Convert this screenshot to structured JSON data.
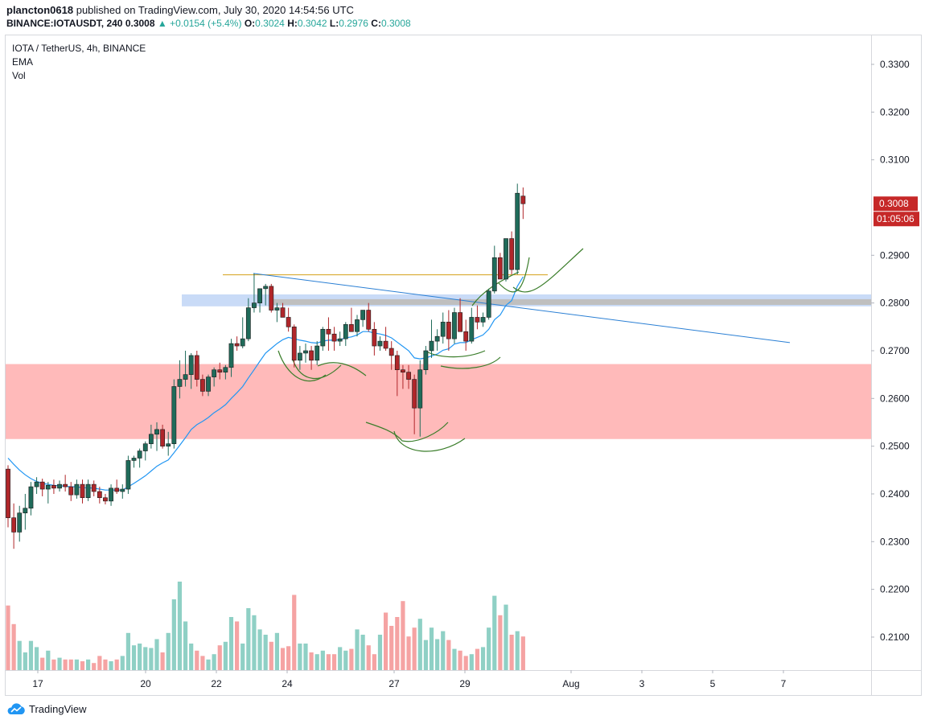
{
  "header": {
    "publisher": "plancton0618",
    "published_text": "published on TradingView.com, July 30, 2020 14:54:56 UTC",
    "symbol": "BINANCE:IOTAUSDT, 240",
    "last": "0.3008",
    "change": "▲ +0.0154 (+5.4%)",
    "o_label": "O:",
    "o": "0.3024",
    "h_label": "H:",
    "h": "0.3042",
    "l_label": "L:",
    "l": "0.2976",
    "c_label": "C:",
    "c": "0.3008"
  },
  "legend": {
    "title": "IOTA / TetherUS, 4h, BINANCE",
    "ema": "EMA",
    "vol": "Vol"
  },
  "footer": {
    "brand": "TradingView"
  },
  "colors": {
    "up": "#26a69a",
    "down": "#ef5350",
    "candle_up": "#1f6b5a",
    "candle_down": "#b0262a",
    "ema": "#2196f3",
    "volume_up": "#8fd0c5",
    "volume_down": "#f5a3a3",
    "support_zone": "#ffbaba",
    "resistance_zone_blue": "#c9dbf7",
    "resistance_zone_grey": "#bfbfbf",
    "horizontal_line": "#d4a017",
    "trend_line": "#2a7fd4",
    "arcs": "#3a7d2a",
    "price_label": "#c62828"
  },
  "chart_data": {
    "type": "candlestick",
    "title": "IOTA / TetherUS, 4h, BINANCE",
    "price_range": [
      0.2025,
      0.3395
    ],
    "y_ticks": [
      "0.3300",
      "0.3200",
      "0.3100",
      "0.2900",
      "0.2800",
      "0.2700",
      "0.2600",
      "0.2500",
      "0.2400",
      "0.2300",
      "0.2200",
      "0.2100"
    ],
    "x_ticks": [
      "17",
      "20",
      "22",
      "24",
      "27",
      "29",
      "Aug",
      "3",
      "5",
      "7"
    ],
    "last_price_label": "0.3008",
    "countdown_label": "01:05:06",
    "candles": [
      {
        "o": 0.2452,
        "h": 0.246,
        "l": 0.233,
        "c": 0.235
      },
      {
        "o": 0.235,
        "h": 0.238,
        "l": 0.2285,
        "c": 0.232
      },
      {
        "o": 0.232,
        "h": 0.2375,
        "l": 0.23,
        "c": 0.236
      },
      {
        "o": 0.236,
        "h": 0.24,
        "l": 0.2325,
        "c": 0.237
      },
      {
        "o": 0.237,
        "h": 0.2425,
        "l": 0.2355,
        "c": 0.2415
      },
      {
        "o": 0.2415,
        "h": 0.2435,
        "l": 0.24,
        "c": 0.2425
      },
      {
        "o": 0.2425,
        "h": 0.2432,
        "l": 0.2395,
        "c": 0.241
      },
      {
        "o": 0.241,
        "h": 0.2425,
        "l": 0.238,
        "c": 0.2418
      },
      {
        "o": 0.2418,
        "h": 0.243,
        "l": 0.24,
        "c": 0.2412
      },
      {
        "o": 0.2412,
        "h": 0.2428,
        "l": 0.2405,
        "c": 0.242
      },
      {
        "o": 0.242,
        "h": 0.244,
        "l": 0.2405,
        "c": 0.2415
      },
      {
        "o": 0.2415,
        "h": 0.2425,
        "l": 0.2385,
        "c": 0.2398
      },
      {
        "o": 0.2398,
        "h": 0.243,
        "l": 0.239,
        "c": 0.242
      },
      {
        "o": 0.242,
        "h": 0.243,
        "l": 0.238,
        "c": 0.2392
      },
      {
        "o": 0.2392,
        "h": 0.243,
        "l": 0.2385,
        "c": 0.242
      },
      {
        "o": 0.242,
        "h": 0.2428,
        "l": 0.2395,
        "c": 0.2405
      },
      {
        "o": 0.2405,
        "h": 0.2415,
        "l": 0.238,
        "c": 0.2392
      },
      {
        "o": 0.2392,
        "h": 0.24,
        "l": 0.2378,
        "c": 0.2385
      },
      {
        "o": 0.2385,
        "h": 0.242,
        "l": 0.2375,
        "c": 0.2412
      },
      {
        "o": 0.2412,
        "h": 0.243,
        "l": 0.24,
        "c": 0.2405
      },
      {
        "o": 0.2405,
        "h": 0.242,
        "l": 0.239,
        "c": 0.241
      },
      {
        "o": 0.241,
        "h": 0.248,
        "l": 0.24,
        "c": 0.247
      },
      {
        "o": 0.247,
        "h": 0.248,
        "l": 0.2455,
        "c": 0.2475
      },
      {
        "o": 0.2475,
        "h": 0.2495,
        "l": 0.2455,
        "c": 0.249
      },
      {
        "o": 0.249,
        "h": 0.251,
        "l": 0.247,
        "c": 0.2505
      },
      {
        "o": 0.2505,
        "h": 0.2545,
        "l": 0.2495,
        "c": 0.2525
      },
      {
        "o": 0.2525,
        "h": 0.255,
        "l": 0.249,
        "c": 0.2535
      },
      {
        "o": 0.2535,
        "h": 0.2545,
        "l": 0.2495,
        "c": 0.25
      },
      {
        "o": 0.25,
        "h": 0.253,
        "l": 0.248,
        "c": 0.2505
      },
      {
        "o": 0.2505,
        "h": 0.264,
        "l": 0.2495,
        "c": 0.2625
      },
      {
        "o": 0.2625,
        "h": 0.268,
        "l": 0.26,
        "c": 0.264
      },
      {
        "o": 0.264,
        "h": 0.27,
        "l": 0.2625,
        "c": 0.265
      },
      {
        "o": 0.265,
        "h": 0.2695,
        "l": 0.262,
        "c": 0.269
      },
      {
        "o": 0.269,
        "h": 0.27,
        "l": 0.2625,
        "c": 0.264
      },
      {
        "o": 0.264,
        "h": 0.265,
        "l": 0.2605,
        "c": 0.2615
      },
      {
        "o": 0.2615,
        "h": 0.265,
        "l": 0.2605,
        "c": 0.2645
      },
      {
        "o": 0.2645,
        "h": 0.2665,
        "l": 0.2625,
        "c": 0.266
      },
      {
        "o": 0.266,
        "h": 0.2675,
        "l": 0.264,
        "c": 0.2655
      },
      {
        "o": 0.2655,
        "h": 0.267,
        "l": 0.264,
        "c": 0.2665
      },
      {
        "o": 0.2665,
        "h": 0.2725,
        "l": 0.2645,
        "c": 0.2715
      },
      {
        "o": 0.2715,
        "h": 0.273,
        "l": 0.27,
        "c": 0.271
      },
      {
        "o": 0.271,
        "h": 0.277,
        "l": 0.2705,
        "c": 0.2725
      },
      {
        "o": 0.2725,
        "h": 0.281,
        "l": 0.272,
        "c": 0.279
      },
      {
        "o": 0.279,
        "h": 0.2862,
        "l": 0.278,
        "c": 0.28
      },
      {
        "o": 0.28,
        "h": 0.283,
        "l": 0.278,
        "c": 0.283
      },
      {
        "o": 0.283,
        "h": 0.284,
        "l": 0.2795,
        "c": 0.2835
      },
      {
        "o": 0.2835,
        "h": 0.284,
        "l": 0.278,
        "c": 0.2785
      },
      {
        "o": 0.2785,
        "h": 0.28,
        "l": 0.276,
        "c": 0.279
      },
      {
        "o": 0.279,
        "h": 0.28,
        "l": 0.277,
        "c": 0.277
      },
      {
        "o": 0.277,
        "h": 0.279,
        "l": 0.274,
        "c": 0.275
      },
      {
        "o": 0.275,
        "h": 0.2755,
        "l": 0.2665,
        "c": 0.268
      },
      {
        "o": 0.268,
        "h": 0.271,
        "l": 0.266,
        "c": 0.2695
      },
      {
        "o": 0.2695,
        "h": 0.2715,
        "l": 0.2675,
        "c": 0.27
      },
      {
        "o": 0.27,
        "h": 0.271,
        "l": 0.266,
        "c": 0.268
      },
      {
        "o": 0.268,
        "h": 0.272,
        "l": 0.267,
        "c": 0.271
      },
      {
        "o": 0.271,
        "h": 0.275,
        "l": 0.27,
        "c": 0.2745
      },
      {
        "o": 0.2745,
        "h": 0.277,
        "l": 0.27,
        "c": 0.2735
      },
      {
        "o": 0.2735,
        "h": 0.275,
        "l": 0.27,
        "c": 0.272
      },
      {
        "o": 0.272,
        "h": 0.274,
        "l": 0.271,
        "c": 0.2725
      },
      {
        "o": 0.2725,
        "h": 0.276,
        "l": 0.271,
        "c": 0.2755
      },
      {
        "o": 0.2755,
        "h": 0.279,
        "l": 0.274,
        "c": 0.274
      },
      {
        "o": 0.274,
        "h": 0.2775,
        "l": 0.273,
        "c": 0.2765
      },
      {
        "o": 0.2765,
        "h": 0.2785,
        "l": 0.275,
        "c": 0.2785
      },
      {
        "o": 0.2785,
        "h": 0.28,
        "l": 0.274,
        "c": 0.2745
      },
      {
        "o": 0.2745,
        "h": 0.276,
        "l": 0.269,
        "c": 0.271
      },
      {
        "o": 0.271,
        "h": 0.273,
        "l": 0.27,
        "c": 0.272
      },
      {
        "o": 0.272,
        "h": 0.275,
        "l": 0.27,
        "c": 0.2705
      },
      {
        "o": 0.2705,
        "h": 0.272,
        "l": 0.266,
        "c": 0.269
      },
      {
        "o": 0.269,
        "h": 0.27,
        "l": 0.2605,
        "c": 0.266
      },
      {
        "o": 0.266,
        "h": 0.267,
        "l": 0.262,
        "c": 0.2655
      },
      {
        "o": 0.2655,
        "h": 0.267,
        "l": 0.262,
        "c": 0.264
      },
      {
        "o": 0.264,
        "h": 0.265,
        "l": 0.2525,
        "c": 0.258
      },
      {
        "o": 0.258,
        "h": 0.268,
        "l": 0.252,
        "c": 0.266
      },
      {
        "o": 0.266,
        "h": 0.271,
        "l": 0.265,
        "c": 0.27
      },
      {
        "o": 0.27,
        "h": 0.2765,
        "l": 0.2685,
        "c": 0.272
      },
      {
        "o": 0.272,
        "h": 0.2745,
        "l": 0.27,
        "c": 0.273
      },
      {
        "o": 0.273,
        "h": 0.278,
        "l": 0.2715,
        "c": 0.276
      },
      {
        "o": 0.276,
        "h": 0.2785,
        "l": 0.27,
        "c": 0.2725
      },
      {
        "o": 0.2725,
        "h": 0.279,
        "l": 0.2715,
        "c": 0.278
      },
      {
        "o": 0.278,
        "h": 0.281,
        "l": 0.274,
        "c": 0.274
      },
      {
        "o": 0.274,
        "h": 0.2765,
        "l": 0.27,
        "c": 0.272
      },
      {
        "o": 0.272,
        "h": 0.279,
        "l": 0.2715,
        "c": 0.277
      },
      {
        "o": 0.277,
        "h": 0.2795,
        "l": 0.2745,
        "c": 0.276
      },
      {
        "o": 0.276,
        "h": 0.278,
        "l": 0.275,
        "c": 0.277
      },
      {
        "o": 0.277,
        "h": 0.283,
        "l": 0.2765,
        "c": 0.2825
      },
      {
        "o": 0.2825,
        "h": 0.292,
        "l": 0.282,
        "c": 0.2895
      },
      {
        "o": 0.2895,
        "h": 0.2905,
        "l": 0.285,
        "c": 0.285
      },
      {
        "o": 0.285,
        "h": 0.2935,
        "l": 0.2845,
        "c": 0.2935
      },
      {
        "o": 0.2935,
        "h": 0.295,
        "l": 0.286,
        "c": 0.287
      },
      {
        "o": 0.287,
        "h": 0.305,
        "l": 0.286,
        "c": 0.303
      },
      {
        "o": 0.3024,
        "h": 0.3042,
        "l": 0.2976,
        "c": 0.3008
      }
    ],
    "ema": [
      0.2475,
      0.2462,
      0.245,
      0.244,
      0.2432,
      0.2426,
      0.2422,
      0.242,
      0.2418,
      0.2417,
      0.2416,
      0.2415,
      0.2415,
      0.2413,
      0.2413,
      0.2412,
      0.241,
      0.2408,
      0.2408,
      0.2408,
      0.2408,
      0.2415,
      0.2422,
      0.243,
      0.2438,
      0.2448,
      0.2458,
      0.2465,
      0.2471,
      0.2486,
      0.2502,
      0.2518,
      0.2535,
      0.2545,
      0.2552,
      0.256,
      0.257,
      0.2578,
      0.2587,
      0.26,
      0.2612,
      0.2625,
      0.2643,
      0.266,
      0.2678,
      0.2695,
      0.2705,
      0.2715,
      0.2723,
      0.2728,
      0.2725,
      0.2722,
      0.272,
      0.2717,
      0.2716,
      0.272,
      0.2722,
      0.2722,
      0.2723,
      0.2727,
      0.2729,
      0.2733,
      0.274,
      0.274,
      0.2737,
      0.2735,
      0.2732,
      0.2727,
      0.2718,
      0.2709,
      0.27,
      0.2685,
      0.2683,
      0.2685,
      0.2689,
      0.2693,
      0.2701,
      0.2704,
      0.2714,
      0.2717,
      0.2717,
      0.2723,
      0.2728,
      0.2733,
      0.2745,
      0.2765,
      0.2775,
      0.2795,
      0.2805,
      0.2835,
      0.2855
    ],
    "volume": [
      0.73,
      0.52,
      0.33,
      0.2,
      0.33,
      0.26,
      0.14,
      0.22,
      0.12,
      0.14,
      0.12,
      0.12,
      0.12,
      0.1,
      0.12,
      0.08,
      0.16,
      0.12,
      0.1,
      0.12,
      0.16,
      0.42,
      0.28,
      0.3,
      0.26,
      0.25,
      0.35,
      0.2,
      0.42,
      0.8,
      1.0,
      0.55,
      0.3,
      0.22,
      0.16,
      0.12,
      0.18,
      0.28,
      0.32,
      0.6,
      0.55,
      0.3,
      0.7,
      0.62,
      0.46,
      0.4,
      0.32,
      0.42,
      0.25,
      0.27,
      0.85,
      0.3,
      0.3,
      0.2,
      0.18,
      0.22,
      0.18,
      0.18,
      0.26,
      0.22,
      0.24,
      0.46,
      0.4,
      0.28,
      0.18,
      0.4,
      0.65,
      0.5,
      0.6,
      0.78,
      0.38,
      0.48,
      0.58,
      0.34,
      0.48,
      0.35,
      0.44,
      0.34,
      0.24,
      0.22,
      0.16,
      0.18,
      0.24,
      0.26,
      0.48,
      0.84,
      0.62,
      0.74,
      0.4,
      0.44,
      0.38
    ]
  }
}
